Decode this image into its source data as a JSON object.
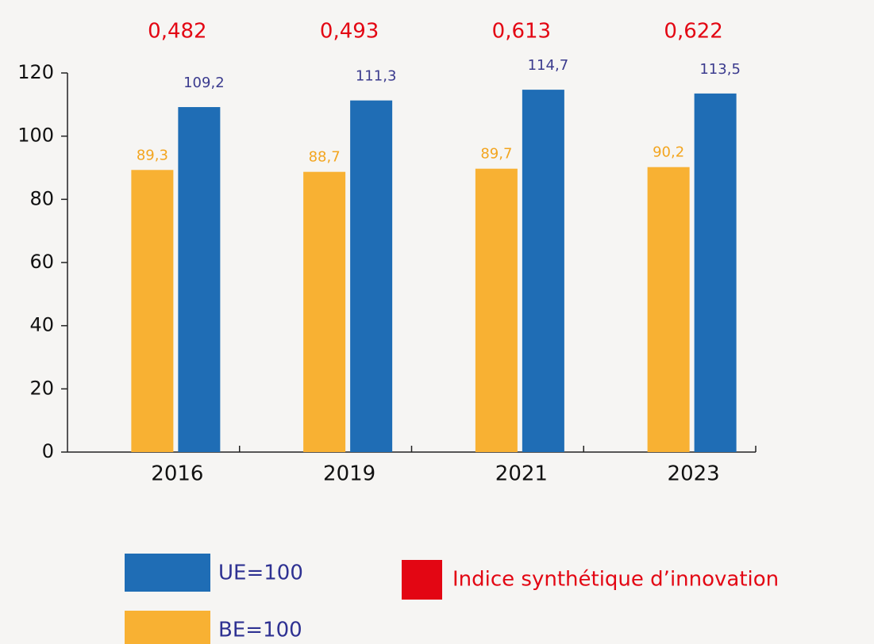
{
  "chart_data": {
    "type": "bar",
    "categories": [
      "2016",
      "2019",
      "2021",
      "2023"
    ],
    "series": [
      {
        "name": "BE=100",
        "color": "#f8b133",
        "label_color": "#f3a51f",
        "values": [
          89.3,
          88.7,
          89.7,
          90.2
        ],
        "value_labels": [
          "89,3",
          "88,7",
          "89,7",
          "90,2"
        ]
      },
      {
        "name": "UE=100",
        "color": "#1f6db5",
        "label_color": "#3b3b8e",
        "values": [
          109.2,
          111.3,
          114.7,
          113.5
        ],
        "value_labels": [
          "109,2",
          "111,3",
          "114,7",
          "113,5"
        ]
      }
    ],
    "index": {
      "name": "Indice synthétique d’innovation",
      "color": "#e30613",
      "values": [
        0.482,
        0.493,
        0.613,
        0.622
      ],
      "value_labels": [
        "0,482",
        "0,493",
        "0,613",
        "0,622"
      ]
    },
    "ylim": [
      0,
      120
    ],
    "yticks": [
      0,
      20,
      40,
      60,
      80,
      100,
      120
    ]
  }
}
